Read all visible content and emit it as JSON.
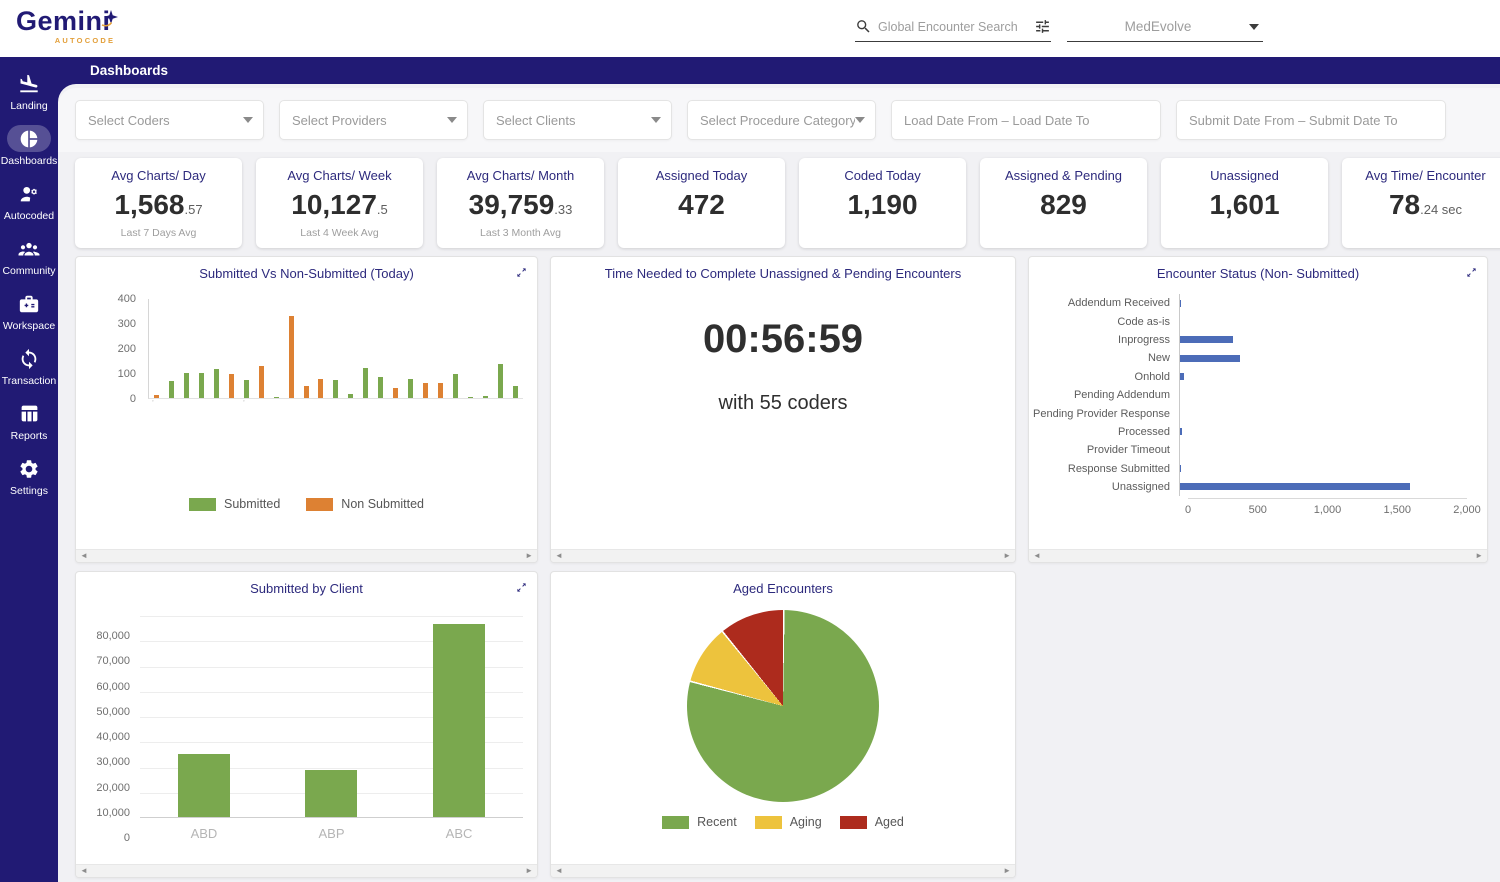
{
  "brand": {
    "name": "Gemini",
    "tagline": "AUTOCODE"
  },
  "header": {
    "search_placeholder": "Global Encounter Search",
    "org": "MedEvolve"
  },
  "page_title": "Dashboards",
  "sidebar": {
    "items": [
      {
        "label": "Landing",
        "icon": "plane-landing",
        "active": false
      },
      {
        "label": "Dashboards",
        "icon": "pie-chart",
        "active": true
      },
      {
        "label": "Autocoded",
        "icon": "user-gear",
        "active": false
      },
      {
        "label": "Community",
        "icon": "people-group",
        "active": false
      },
      {
        "label": "Workspace",
        "icon": "briefcase",
        "active": false
      },
      {
        "label": "Transaction",
        "icon": "sync",
        "active": false
      },
      {
        "label": "Reports",
        "icon": "table",
        "active": false
      },
      {
        "label": "Settings",
        "icon": "gear",
        "active": false
      }
    ]
  },
  "filters": [
    {
      "placeholder": "Select Coders",
      "type": "select"
    },
    {
      "placeholder": "Select Providers",
      "type": "select"
    },
    {
      "placeholder": "Select Clients",
      "type": "select"
    },
    {
      "placeholder": "Select Procedure Category",
      "type": "select"
    },
    {
      "placeholder": "Load Date From – Load Date To",
      "type": "daterange"
    },
    {
      "placeholder": "Submit Date From – Submit Date To",
      "type": "daterange"
    }
  ],
  "kpis": [
    {
      "title": "Avg Charts/ Day",
      "value": "1,568",
      "suffix": ".57",
      "subtitle": "Last 7 Days Avg"
    },
    {
      "title": "Avg Charts/ Week",
      "value": "10,127",
      "suffix": ".5",
      "subtitle": "Last 4 Week Avg"
    },
    {
      "title": "Avg Charts/ Month",
      "value": "39,759",
      "suffix": ".33",
      "subtitle": "Last 3 Month Avg"
    },
    {
      "title": "Assigned Today",
      "value": "472",
      "suffix": "",
      "subtitle": ""
    },
    {
      "title": "Coded Today",
      "value": "1,190",
      "suffix": "",
      "subtitle": ""
    },
    {
      "title": "Assigned & Pending",
      "value": "829",
      "suffix": "",
      "subtitle": ""
    },
    {
      "title": "Unassigned",
      "value": "1,601",
      "suffix": "",
      "subtitle": ""
    },
    {
      "title": "Avg Time/ Encounter",
      "value": "78",
      "suffix": ".24 sec",
      "subtitle": ""
    }
  ],
  "chart_data": [
    {
      "id": "submitted-vs-non-submitted",
      "type": "bar",
      "title": "Submitted Vs Non-Submitted (Today)",
      "ylim": [
        0,
        400
      ],
      "yticks": [
        "400",
        "300",
        "200",
        "100",
        "0"
      ],
      "legend_position": "bottom",
      "legend": [
        {
          "name": "Submitted",
          "color": "#7aa84e"
        },
        {
          "name": "Non Submitted",
          "color": "#dd8133"
        }
      ],
      "bars": [
        {
          "series": "Non Submitted",
          "value": 12
        },
        {
          "series": "Submitted",
          "value": 68
        },
        {
          "series": "Submitted",
          "value": 100
        },
        {
          "series": "Submitted",
          "value": 100
        },
        {
          "series": "Submitted",
          "value": 118
        },
        {
          "series": "Non Submitted",
          "value": 95
        },
        {
          "series": "Submitted",
          "value": 72
        },
        {
          "series": "Non Submitted",
          "value": 130
        },
        {
          "series": "Submitted",
          "value": 4
        },
        {
          "series": "Non Submitted",
          "value": 327
        },
        {
          "series": "Non Submitted",
          "value": 47
        },
        {
          "series": "Non Submitted",
          "value": 78
        },
        {
          "series": "Submitted",
          "value": 72
        },
        {
          "series": "Submitted",
          "value": 18
        },
        {
          "series": "Submitted",
          "value": 122
        },
        {
          "series": "Submitted",
          "value": 85
        },
        {
          "series": "Non Submitted",
          "value": 40
        },
        {
          "series": "Submitted",
          "value": 75
        },
        {
          "series": "Non Submitted",
          "value": 60
        },
        {
          "series": "Non Submitted",
          "value": 60
        },
        {
          "series": "Submitted",
          "value": 95
        },
        {
          "series": "Submitted",
          "value": 5
        },
        {
          "series": "Submitted",
          "value": 10
        },
        {
          "series": "Submitted",
          "value": 135
        },
        {
          "series": "Submitted",
          "value": 50
        }
      ]
    },
    {
      "id": "time-needed",
      "type": "stat",
      "title": "Time Needed to Complete Unassigned & Pending Encounters",
      "value": "00:56:59",
      "subtitle": "with 55 coders"
    },
    {
      "id": "encounter-status",
      "type": "hbar",
      "title": "Encounter Status (Non- Submitted)",
      "bar_color": "#4c6cb8",
      "xlim": [
        0,
        2000
      ],
      "xticks": [
        "0",
        "500",
        "1,000",
        "1,500",
        "2,000"
      ],
      "categories": [
        "Addendum Received",
        "Code as-is",
        "Inprogress",
        "New",
        "Onhold",
        "Pending Addendum",
        "Pending Provider Response",
        "Processed",
        "Provider Timeout",
        "Response Submitted",
        "Unassigned"
      ],
      "values": [
        6,
        0,
        370,
        420,
        28,
        0,
        0,
        16,
        0,
        2,
        1601
      ]
    },
    {
      "id": "submitted-by-client",
      "type": "bar",
      "title": "Submitted by Client",
      "bar_color": "#7aa84e",
      "ylim": [
        0,
        80000
      ],
      "yticks": [
        "80,000",
        "70,000",
        "60,000",
        "50,000",
        "40,000",
        "30,000",
        "20,000",
        "10,000",
        "0"
      ],
      "categories": [
        "ABD",
        "ABP",
        "ABC"
      ],
      "values": [
        25000,
        18500,
        76500
      ]
    },
    {
      "id": "aged-encounters",
      "type": "pie",
      "title": "Aged Encounters",
      "legend_position": "bottom",
      "slices": [
        {
          "label": "Recent",
          "value": 79,
          "color": "#7aa84e"
        },
        {
          "label": "Aging",
          "value": 10,
          "color": "#edc33d"
        },
        {
          "label": "Aged",
          "value": 11,
          "color": "#ad2b1d"
        }
      ]
    }
  ]
}
